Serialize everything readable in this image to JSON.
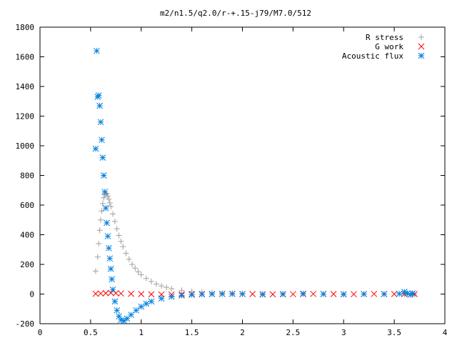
{
  "chart_data": {
    "type": "scatter",
    "title": "m2/n1.5/q2.0/r-+.15-j79/M7.0/512",
    "xlabel": "",
    "ylabel": "",
    "xlim": [
      0,
      4
    ],
    "ylim": [
      -200,
      1800
    ],
    "xticks": [
      0,
      0.5,
      1,
      1.5,
      2,
      2.5,
      3,
      3.5,
      4
    ],
    "xtick_labels": [
      "0",
      "0.5",
      "1",
      "1.5",
      "2",
      "2.5",
      "3",
      "3.5",
      "4"
    ],
    "yticks": [
      -200,
      0,
      200,
      400,
      600,
      800,
      1000,
      1200,
      1400,
      1600,
      1800
    ],
    "ytick_labels": [
      "-200",
      "0",
      "200",
      "400",
      "600",
      "800",
      "1000",
      "1200",
      "1400",
      "1600",
      "1800"
    ],
    "grid": false,
    "legend_position": "top-right",
    "series": [
      {
        "name": "R stress",
        "marker": "plus",
        "color": "#a0a0a0",
        "x": [
          0.55,
          0.57,
          0.58,
          0.59,
          0.6,
          0.61,
          0.62,
          0.63,
          0.64,
          0.65,
          0.66,
          0.67,
          0.68,
          0.69,
          0.7,
          0.72,
          0.74,
          0.76,
          0.78,
          0.8,
          0.82,
          0.85,
          0.88,
          0.91,
          0.94,
          0.97,
          1.0,
          1.05,
          1.1,
          1.15,
          1.2,
          1.25,
          1.3,
          1.4,
          1.5,
          1.6,
          1.7,
          1.8,
          1.9,
          2.0,
          2.2,
          2.4,
          2.6,
          2.8,
          3.0,
          3.2,
          3.4,
          3.6,
          3.7
        ],
        "y": [
          155,
          250,
          340,
          430,
          500,
          560,
          610,
          650,
          670,
          680,
          675,
          660,
          640,
          615,
          590,
          540,
          490,
          440,
          395,
          355,
          320,
          275,
          235,
          200,
          175,
          150,
          130,
          105,
          85,
          68,
          55,
          45,
          36,
          25,
          18,
          13,
          9,
          6,
          4,
          3,
          2,
          1,
          1,
          0,
          0,
          0,
          0,
          0,
          0
        ]
      },
      {
        "name": "G work",
        "marker": "cross",
        "color": "#ff0000",
        "x": [
          0.55,
          0.6,
          0.65,
          0.7,
          0.75,
          0.8,
          0.9,
          1.0,
          1.1,
          1.2,
          1.3,
          1.4,
          1.5,
          1.6,
          1.7,
          1.8,
          1.9,
          2.0,
          2.1,
          2.2,
          2.3,
          2.4,
          2.5,
          2.6,
          2.7,
          2.8,
          2.9,
          3.0,
          3.1,
          3.2,
          3.3,
          3.4,
          3.5,
          3.6,
          3.7
        ],
        "y": [
          2,
          4,
          6,
          8,
          6,
          4,
          2,
          0,
          -2,
          -3,
          -3,
          -2,
          -1,
          0,
          1,
          2,
          2,
          1,
          0,
          -1,
          -2,
          -2,
          -1,
          0,
          1,
          1,
          0,
          -1,
          -1,
          0,
          1,
          0,
          0,
          0,
          0
        ]
      },
      {
        "name": "Acoustic flux",
        "marker": "star",
        "color": "#0080e0",
        "x": [
          0.55,
          0.56,
          0.57,
          0.58,
          0.59,
          0.6,
          0.61,
          0.62,
          0.63,
          0.64,
          0.65,
          0.66,
          0.67,
          0.68,
          0.69,
          0.7,
          0.71,
          0.72,
          0.74,
          0.76,
          0.78,
          0.8,
          0.83,
          0.86,
          0.9,
          0.95,
          1.0,
          1.05,
          1.1,
          1.2,
          1.3,
          1.4,
          1.5,
          1.6,
          1.7,
          1.8,
          1.9,
          2.0,
          2.2,
          2.4,
          2.6,
          2.8,
          3.0,
          3.2,
          3.4,
          3.55,
          3.6,
          3.63,
          3.66,
          3.68
        ],
        "y": [
          980,
          1640,
          1330,
          1340,
          1270,
          1160,
          1040,
          920,
          800,
          690,
          580,
          480,
          390,
          310,
          240,
          170,
          100,
          30,
          -50,
          -110,
          -150,
          -175,
          -180,
          -165,
          -140,
          -110,
          -85,
          -65,
          -50,
          -30,
          -18,
          -10,
          -5,
          -2,
          0,
          1,
          1,
          0,
          -3,
          0,
          3,
          0,
          -2,
          0,
          0,
          2,
          15,
          5,
          -5,
          5
        ]
      }
    ]
  }
}
